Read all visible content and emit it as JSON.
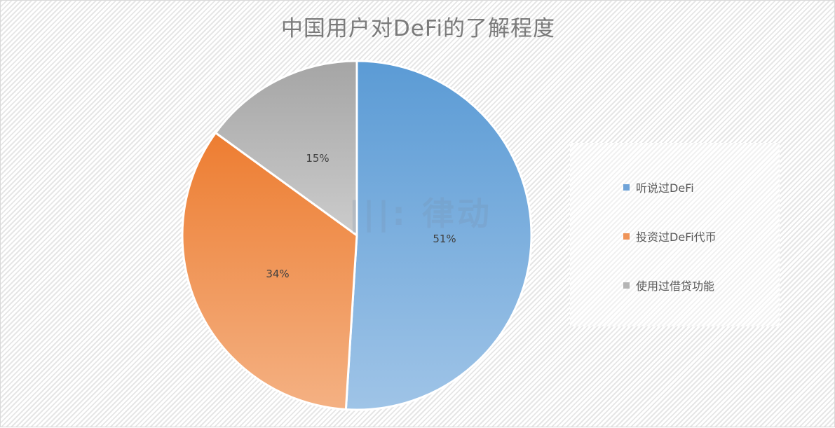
{
  "title": "中国用户对DeFi的了解程度",
  "watermark": "|||: 律动",
  "legend": {
    "items": [
      {
        "label": "听说过DeFi",
        "color": "#6fa3d8"
      },
      {
        "label": "投资过DeFi代币",
        "color": "#ef9459"
      },
      {
        "label": "使用过借贷功能",
        "color": "#b4b4b4"
      }
    ]
  },
  "slices": [
    {
      "label": "51%",
      "value": 51
    },
    {
      "label": "34%",
      "value": 34
    },
    {
      "label": "15%",
      "value": 15
    }
  ],
  "colors": {
    "blue_top": "#5b9bd5",
    "blue_bottom": "#9dc3e6",
    "orange_top": "#ed7d31",
    "orange_bottom": "#f4b183",
    "gray_top": "#a5a5a5",
    "gray_bottom": "#c9c9c9"
  },
  "chart_data": {
    "type": "pie",
    "title": "中国用户对DeFi的了解程度",
    "categories": [
      "听说过DeFi",
      "投资过DeFi代币",
      "使用过借贷功能"
    ],
    "values": [
      51,
      34,
      15
    ],
    "data_labels": [
      "51%",
      "34%",
      "15%"
    ],
    "legend_position": "right",
    "start_angle": "12 o'clock, clockwise"
  }
}
